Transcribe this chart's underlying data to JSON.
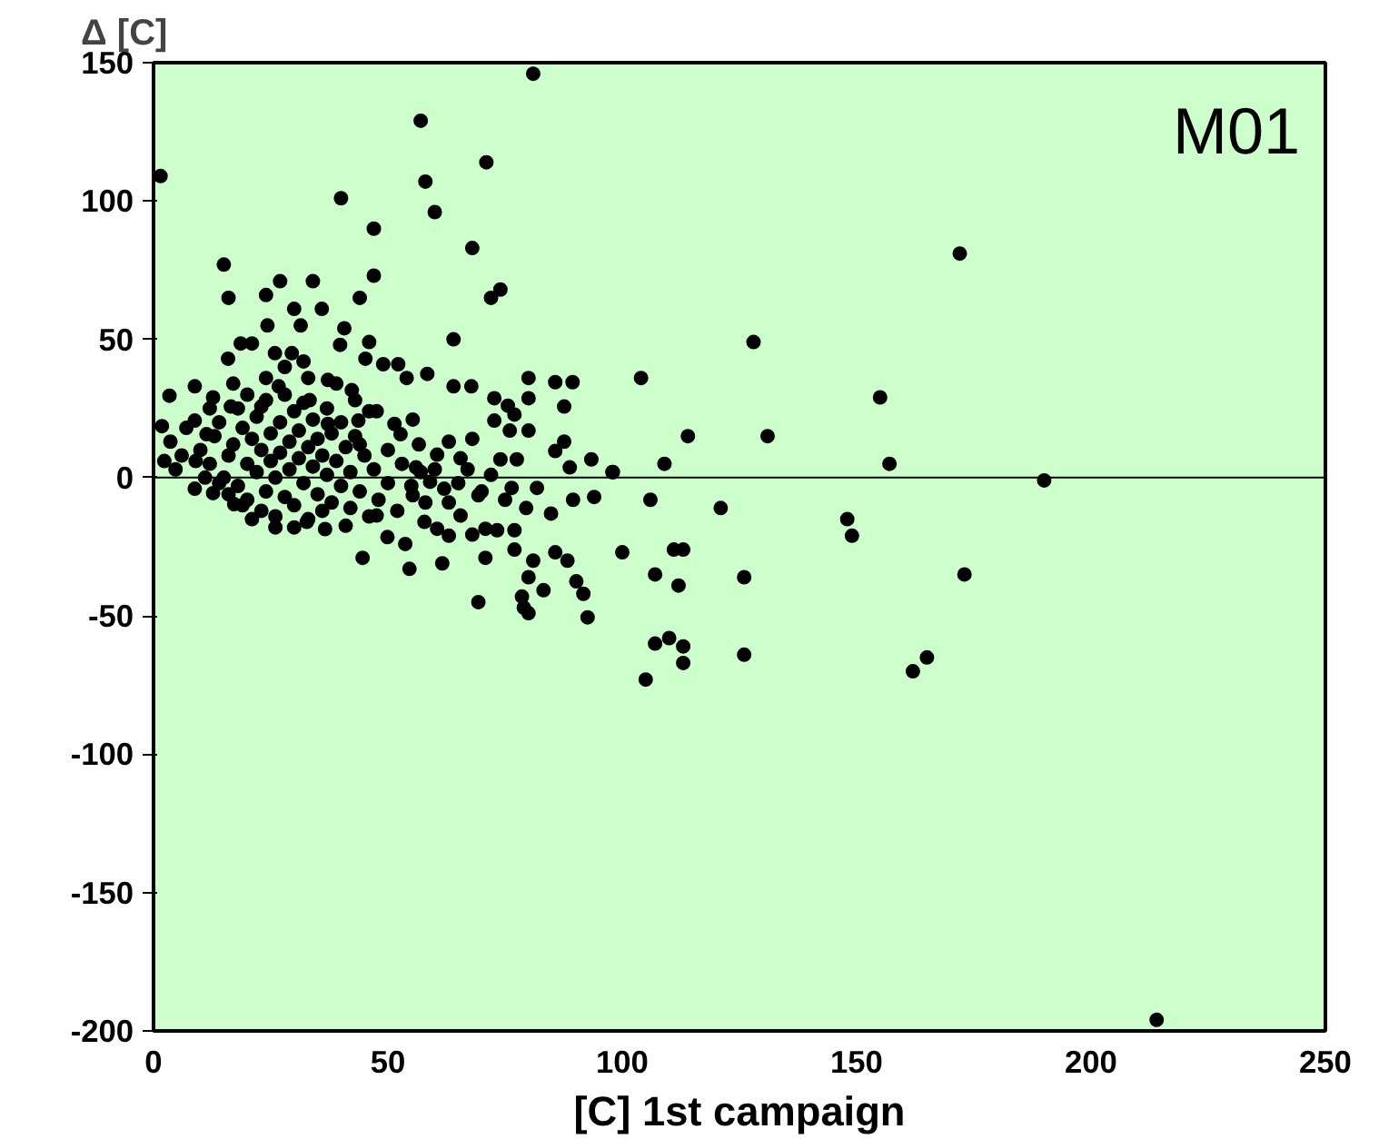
{
  "chart_data": {
    "type": "scatter",
    "ylabel": "Δ [C]",
    "xlabel": "[C] 1st campaign",
    "annotations": [
      "M01"
    ],
    "xlim": [
      0,
      250
    ],
    "xticks": [
      0,
      50,
      100,
      150,
      200,
      250
    ],
    "ylim": [
      -200,
      150
    ],
    "yticks": [
      -200,
      -150,
      -100,
      -50,
      0,
      50,
      100,
      150
    ],
    "grid": false,
    "marker": "circle",
    "ref_lines": [
      {
        "axis": "y",
        "value": 0,
        "color": "#000000"
      }
    ],
    "series": [
      {
        "color": "#000000",
        "x": [
          1.5,
          81,
          57,
          58,
          60,
          71,
          40,
          47,
          68,
          74,
          72,
          64,
          15,
          16,
          34,
          47,
          44,
          27,
          30,
          24,
          172,
          128,
          104,
          155,
          114,
          131,
          98,
          109,
          157,
          190,
          106,
          121,
          148,
          149,
          100,
          111,
          113,
          107,
          112,
          126,
          173,
          107,
          110,
          113,
          113,
          105,
          126,
          165,
          162,
          214,
          3.4,
          8.8,
          12.7,
          18.6,
          21,
          24.3,
          31.4,
          35.9,
          40.7,
          39.8,
          46,
          25.9,
          15.9,
          29.5,
          32,
          45.2,
          49,
          52.2,
          58.4,
          54,
          64,
          67.8,
          80,
          85.7,
          89.4,
          72.7,
          75.6,
          80,
          87.6,
          77,
          72.7,
          76,
          80,
          68,
          87.6,
          85.7,
          74,
          77.5,
          93.4,
          88.8,
          97.9,
          81.8,
          76.4,
          94,
          89.5,
          84.8,
          79.5,
          77,
          77,
          70.8,
          81,
          85.7,
          88.3,
          90.2,
          91.7,
          80,
          83.2,
          78.6,
          79,
          80,
          92.6,
          69.3,
          70.8,
          61.6,
          54.6,
          53.7,
          44.6,
          63,
          68,
          73.3,
          57.8,
          60.5,
          17.2,
          8.8,
          12.7,
          1.8,
          3.6,
          2.3,
          4.7,
          49.9,
          41,
          36.6,
          32.7,
          47.6,
          55.3,
          59,
          63,
          65.5,
          69.3,
          56,
          60.5,
          63,
          65.5,
          52.7,
          56.6,
          47.6,
          51.4,
          55.3,
          43.7,
          37.2,
          42.3,
          37.2,
          33.3,
          26.7,
          23,
          16.5,
          8.8,
          11.3,
          10,
          12,
          13,
          14,
          15,
          16,
          17,
          18,
          18,
          19,
          20,
          20,
          21,
          22,
          22,
          23,
          23,
          24,
          24,
          25,
          25,
          26,
          26,
          27,
          27,
          28,
          28,
          29,
          29,
          30,
          30,
          31,
          31,
          32,
          32,
          33,
          33,
          34,
          34,
          35,
          35,
          36,
          36,
          37,
          37,
          38,
          38,
          39,
          40,
          40,
          41,
          42,
          42,
          43,
          44,
          45,
          46,
          47,
          48,
          50,
          50,
          52,
          53,
          55,
          57,
          58,
          60,
          62,
          65,
          67,
          70,
          72,
          75,
          14,
          11,
          9,
          16,
          19,
          21,
          26,
          30,
          44,
          46,
          20,
          24,
          28,
          33,
          39,
          43,
          17,
          12,
          6,
          7
        ],
        "values": [
          109,
          146,
          129,
          107,
          96,
          114,
          101,
          90,
          83,
          68,
          65,
          50,
          77,
          65,
          71,
          73,
          65,
          71,
          61,
          66,
          81,
          49,
          36,
          29,
          15,
          15,
          2,
          5,
          5,
          -1,
          -8,
          -11,
          -15,
          -21,
          -27,
          -26,
          -26,
          -35,
          -39,
          -36,
          -35,
          -60,
          -58,
          -61,
          -67,
          -73,
          -64,
          -65,
          -70,
          -196,
          29.6,
          33,
          29,
          48.5,
          48.5,
          55,
          55,
          61,
          54,
          48,
          49,
          45,
          43,
          45,
          42,
          43,
          41,
          41,
          37.5,
          36,
          33,
          33,
          36,
          34.5,
          34.5,
          28.7,
          26,
          28.7,
          25.7,
          22.8,
          20.6,
          17,
          17,
          14,
          13,
          9.6,
          6.6,
          6.6,
          6.6,
          3.7,
          2,
          -3.7,
          -3.7,
          -7,
          -8,
          -13,
          -11,
          -19,
          -26,
          -18.5,
          -30,
          -27,
          -30,
          -37.5,
          -42,
          -36,
          -40.7,
          -43,
          -47,
          -49,
          -50.5,
          -45,
          -29,
          -31,
          -33,
          -24,
          -29,
          -21,
          -20.6,
          -19,
          -16,
          -18.5,
          -9.6,
          -4,
          -5.6,
          18.6,
          13,
          6,
          3,
          -21.5,
          -17.4,
          -18.6,
          -16,
          -13.7,
          -6.4,
          -1.5,
          -9,
          -13.7,
          -6.4,
          3.7,
          8.3,
          13,
          7,
          15.7,
          12,
          24,
          19.4,
          21,
          20.6,
          19.4,
          31.6,
          35.3,
          28,
          33,
          25.7,
          25.7,
          20.6,
          15.7,
          10,
          5,
          15,
          20,
          0,
          8,
          12,
          -3,
          25,
          18,
          5,
          -8,
          14,
          22,
          2,
          10,
          -12,
          28,
          -5,
          16,
          6,
          0,
          -14,
          20,
          9,
          -7,
          30,
          13,
          3,
          24,
          -10,
          7,
          17,
          -2,
          27,
          11,
          -15,
          4,
          21,
          -6,
          14,
          8,
          -12,
          25,
          1,
          16,
          -9,
          6,
          -3,
          20,
          11,
          -11,
          2,
          15,
          -5,
          8,
          -14,
          3,
          -8,
          -2,
          10,
          -12,
          5,
          -3,
          2,
          -9,
          3,
          -4,
          -2,
          3,
          -5,
          1,
          -8,
          -2,
          0,
          6,
          -6,
          -10,
          -15,
          -18,
          -18,
          12,
          24,
          30,
          36,
          40,
          36,
          34,
          28,
          34,
          25,
          8,
          18
        ]
      }
    ]
  }
}
